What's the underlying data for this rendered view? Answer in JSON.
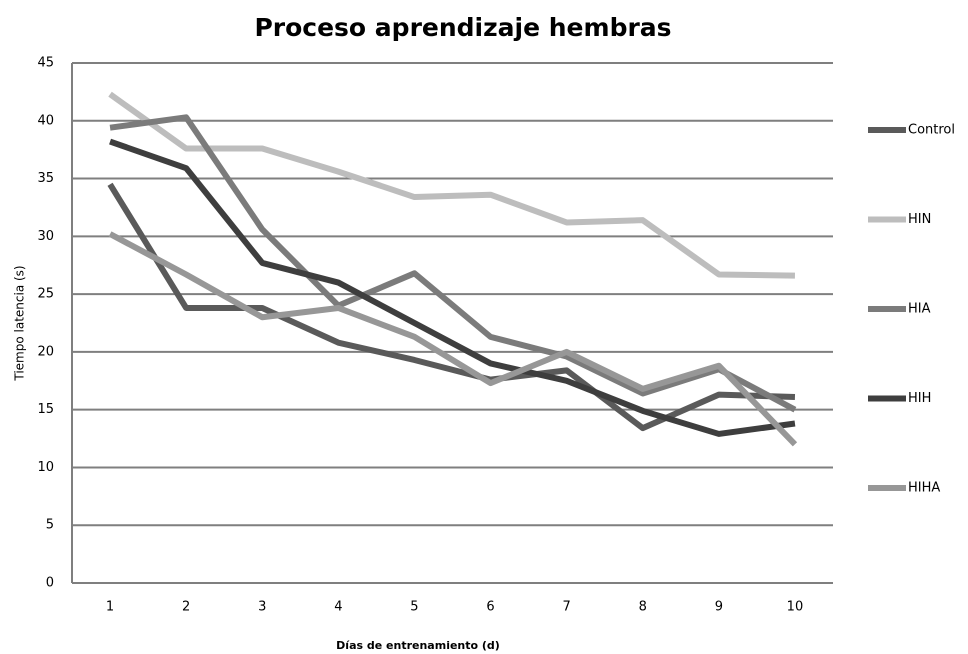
{
  "chart_data": {
    "type": "line",
    "title": "Proceso aprendizaje hembras",
    "x_label": "Días de entrenamiento (d)",
    "y_label": "Tiempo latencia (s)",
    "categories": [
      "1",
      "2",
      "3",
      "4",
      "5",
      "6",
      "7",
      "8",
      "9",
      "10"
    ],
    "series": [
      {
        "name": "Control",
        "color": "#5a5a5a",
        "values": [
          34.5,
          23.8,
          23.8,
          20.8,
          19.3,
          17.6,
          18.4,
          13.4,
          16.3,
          16.1
        ]
      },
      {
        "name": "HIN",
        "color": "#bdbdbd",
        "values": [
          42.3,
          37.6,
          37.6,
          35.6,
          33.4,
          33.6,
          31.2,
          31.4,
          26.7,
          26.6
        ]
      },
      {
        "name": "HIA",
        "color": "#7b7b7b",
        "values": [
          39.4,
          40.3,
          30.6,
          24.0,
          26.8,
          21.3,
          19.6,
          16.4,
          18.5,
          15.0
        ]
      },
      {
        "name": "HIH",
        "color": "#3e3e3e",
        "values": [
          38.2,
          35.9,
          27.7,
          26.0,
          22.5,
          19.0,
          17.5,
          14.9,
          12.9,
          13.8
        ]
      },
      {
        "name": "HIHA",
        "color": "#979797",
        "values": [
          30.2,
          26.7,
          23.0,
          23.8,
          21.3,
          17.3,
          20.0,
          16.8,
          18.8,
          12.0
        ]
      }
    ],
    "ylim": [
      0,
      45
    ],
    "yticks": [
      0,
      5,
      10,
      15,
      20,
      25,
      30,
      35,
      40,
      45
    ],
    "grid": true,
    "legend": "right"
  }
}
